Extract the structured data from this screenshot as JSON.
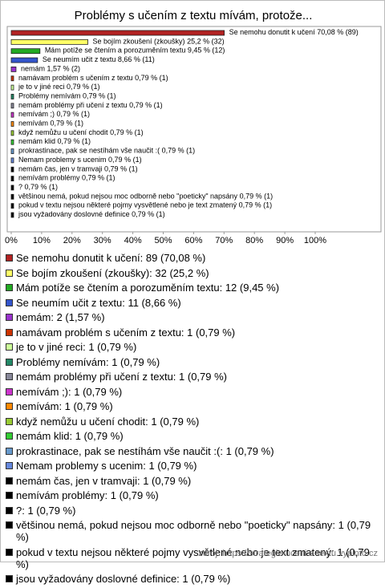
{
  "chart_data": {
    "type": "bar",
    "orientation": "horizontal",
    "title": "Problémy s učením z textu mívám, protože...",
    "categories": [
      "Se nemohu donutit k učení",
      "Se bojím zkoušení (zkoušky)",
      "Mám potíže se čtením a porozuměním textu",
      "Se neumím učit z textu",
      "nemám",
      "namávam problém s učením z textu",
      "je to v jiné reci",
      "Problémy nemívám",
      "nemám problémy při učení z textu",
      "nemívám ;)",
      "nemívám",
      "když nemůžu u učení chodit",
      "nemám klid",
      "prokrastinace, pak se nestíhám vše naučit :(",
      "Nemam problemy s ucenim",
      "nemám čas, jen v tramvaji",
      "nemívám problémy",
      "?",
      "většinou nemá, pokud nejsou moc odborně nebo \"poeticky\" napsány",
      "pokud v textu nejsou některé pojmy vysvětlené nebo je text zmatený",
      "jsou vyžadovány doslovné definice"
    ],
    "values": [
      70.08,
      25.2,
      9.45,
      8.66,
      1.57,
      0.79,
      0.79,
      0.79,
      0.79,
      0.79,
      0.79,
      0.79,
      0.79,
      0.79,
      0.79,
      0.79,
      0.79,
      0.79,
      0.79,
      0.79,
      0.79
    ],
    "value_labels": [
      "70,08 % (89)",
      "25,2 % (32)",
      "9,45 % (12)",
      "8,66 % (11)",
      "1,57 % (2)",
      "0,79 % (1)",
      "0,79 % (1)",
      "0,79 % (1)",
      "0,79 % (1)",
      "0,79 % (1)",
      "0,79 % (1)",
      "0,79 % (1)",
      "0,79 % (1)",
      "0,79 % (1)",
      "0,79 % (1)",
      "0,79 % (1)",
      "0,79 % (1)",
      "0,79 % (1)",
      "0,79 % (1)",
      "0,79 % (1)",
      "0,79 % (1)"
    ],
    "legend_labels": [
      "Se nemohu donutit k učení: 89 (70,08 %)",
      "Se bojím zkoušení (zkoušky): 32 (25,2 %)",
      "Mám potíže se čtením a porozuměním textu: 12 (9,45 %)",
      "Se neumím učit z textu: 11 (8,66 %)",
      "nemám: 2 (1,57 %)",
      "namávam problém s učením z textu: 1 (0,79 %)",
      "je to v jiné reci: 1 (0,79 %)",
      "Problémy nemívám: 1 (0,79 %)",
      "nemám problémy při učení z textu: 1 (0,79 %)",
      "nemívám ;): 1 (0,79 %)",
      "nemívám: 1 (0,79 %)",
      "když nemůžu u učení chodit: 1 (0,79 %)",
      "nemám klid: 1 (0,79 %)",
      "prokrastinace, pak se nestíhám vše naučit :(: 1 (0,79 %)",
      "Nemam problemy s ucenim: 1 (0,79 %)",
      "nemám čas, jen v tramvaji: 1 (0,79 %)",
      "nemívám problémy: 1 (0,79 %)",
      "?: 1 (0,79 %)",
      "většinou nemá, pokud nejsou moc odborně nebo \"poeticky\" napsány: 1 (0,79 %)",
      "pokud v textu nejsou některé pojmy vysvětlené nebo je text zmatený: 1 (0,79 %)",
      "jsou vyžadovány doslovné definice: 1 (0,79 %)"
    ],
    "colors": [
      "#b22222",
      "#ffff66",
      "#22aa22",
      "#3355cc",
      "#9933cc",
      "#cc3300",
      "#ccff99",
      "#228866",
      "#888899",
      "#cc33cc",
      "#ff8800",
      "#99cc33",
      "#33cc33",
      "#6699cc",
      "#6688dd",
      "#000000",
      "#000000",
      "#000000",
      "#000000",
      "#000000",
      "#000000"
    ],
    "xlim": [
      0,
      100
    ],
    "xticks": [
      {
        "value": 0,
        "label": "0%"
      },
      {
        "value": 10,
        "label": "10%"
      },
      {
        "value": 20,
        "label": "20%"
      },
      {
        "value": 30,
        "label": "30%"
      },
      {
        "value": 40,
        "label": "40%"
      },
      {
        "value": 50,
        "label": "50%"
      },
      {
        "value": 60,
        "label": "60%"
      },
      {
        "value": 70,
        "label": "70%"
      },
      {
        "value": 80,
        "label": "80%"
      },
      {
        "value": 90,
        "label": "90%"
      },
      {
        "value": 100,
        "label": "100%"
      }
    ],
    "grid": false,
    "source": "zdroj: https://strategie-uceni-z-textu.vyplnto.cz"
  }
}
